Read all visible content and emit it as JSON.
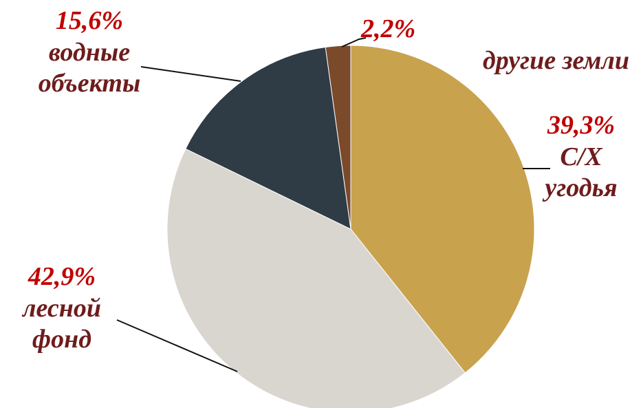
{
  "chart_data": {
    "type": "pie",
    "categories": [
      "С/Х угодья",
      "лесной фонд",
      "водные объекты",
      "другие земли"
    ],
    "values": [
      39.3,
      42.9,
      15.6,
      2.2
    ],
    "value_labels": [
      "39,3%",
      "42,9%",
      "15,6%",
      "2,2%"
    ],
    "colors": [
      "#c9a24e",
      "#d9d6cf",
      "#2f3c46",
      "#7a4a2b"
    ]
  }
}
